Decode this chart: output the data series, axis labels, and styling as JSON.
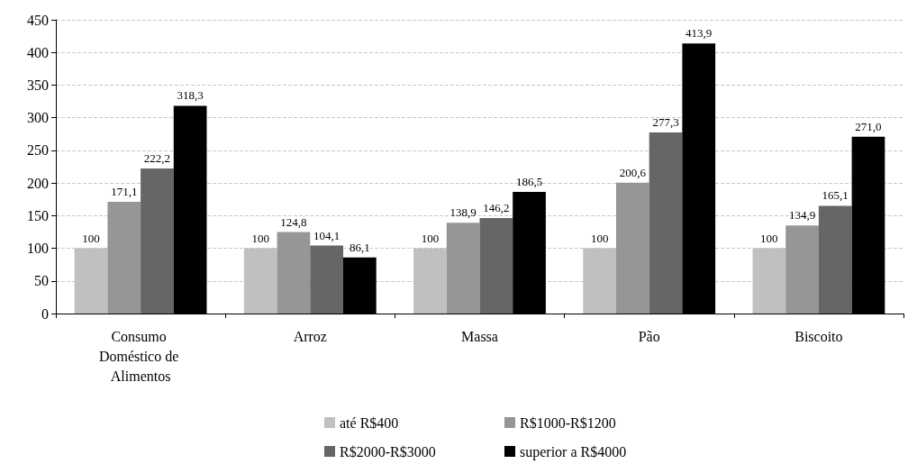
{
  "chart_data": {
    "type": "bar",
    "categories": [
      "Consumo Doméstico de Alimentos",
      "Arroz",
      "Massa",
      "Pão",
      "Biscoito"
    ],
    "series": [
      {
        "name": "até R$400",
        "color": "#c0c0c0",
        "values": [
          100,
          100,
          100,
          100,
          100
        ],
        "value_labels": [
          "100",
          "100",
          "100",
          "100",
          "100"
        ]
      },
      {
        "name": "R$1000-R$1200",
        "color": "#969696",
        "values": [
          171.1,
          124.8,
          138.9,
          200.6,
          134.9
        ],
        "value_labels": [
          "171,1",
          "124,8",
          "138,9",
          "200,6",
          "134,9"
        ]
      },
      {
        "name": "R$2000-R$3000",
        "color": "#666666",
        "values": [
          222.2,
          104.1,
          146.2,
          277.3,
          165.1
        ],
        "value_labels": [
          "222,2",
          "104,1",
          "146,2",
          "277,3",
          "165,1"
        ]
      },
      {
        "name": "superior a R$4000",
        "color": "#000000",
        "values": [
          318.3,
          86.1,
          186.5,
          413.9,
          271.0
        ],
        "value_labels": [
          "318,3",
          "86,1",
          "186,5",
          "413,9",
          "271,0"
        ]
      }
    ],
    "ylim": [
      0,
      450
    ],
    "yticks": [
      0,
      50,
      100,
      150,
      200,
      250,
      300,
      350,
      400,
      450
    ],
    "grid": "y",
    "legend": "bottom"
  }
}
